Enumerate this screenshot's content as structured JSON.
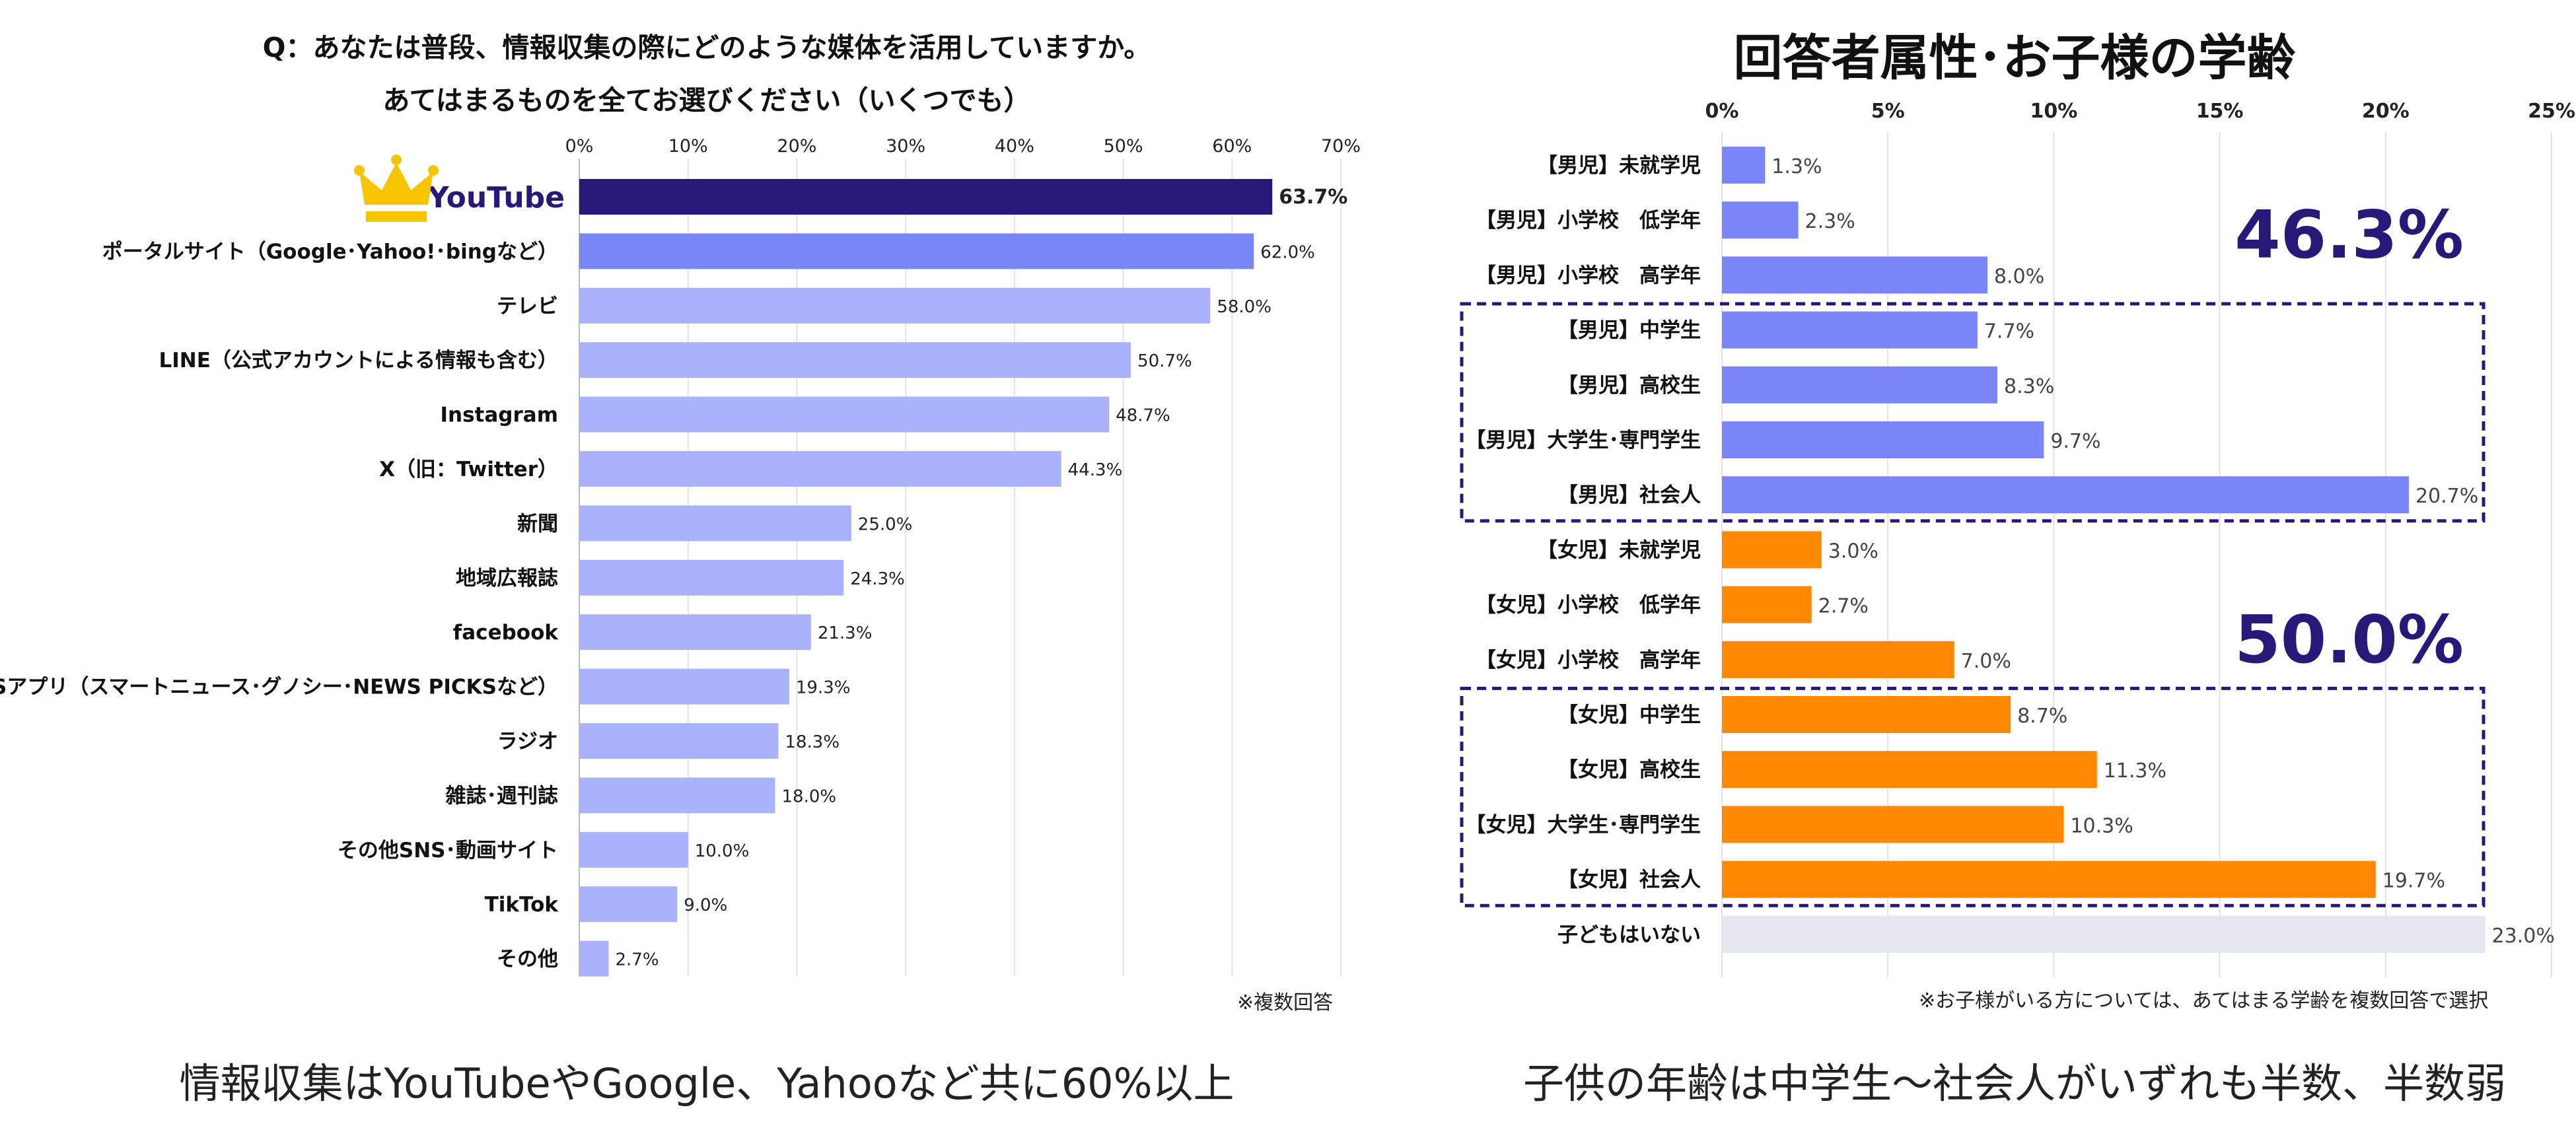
{
  "left": {
    "question_line1": "Q：あなたは普段、情報収集の際にどのような媒体を活用していますか。",
    "question_line2": "あてはまるものを全てお選びください（いくつでも）",
    "note": "※複数回答",
    "caption": "情報収集はYouTubeやGoogle、Yahooなど共に60%以上"
  },
  "right": {
    "title": "回答者属性･お子様の学齢",
    "note": "※お子様がいる方については、あてはまる学齢を複数回答で選択",
    "caption": "子供の年齢は中学生～社会人がいずれも半数、半数弱",
    "callout_boys": "46.3%",
    "callout_girls": "50.0%"
  },
  "colors": {
    "top_bar": "#27197a",
    "second_bar": "#7a86f7",
    "other_bars": "#aab2fb",
    "boys": "#7a86f7",
    "girls": "#fd8701",
    "none": "#e3e6ec",
    "callout": "#27197a",
    "crown": "#f6c400"
  },
  "icons": {
    "top_item_badge": "crown-icon"
  },
  "chart_data": [
    {
      "type": "bar",
      "orientation": "horizontal",
      "categories": [
        "YouTube",
        "ポータルサイト（Google･Yahoo!･bingなど）",
        "テレビ",
        "LINE（公式アカウントによる情報も含む）",
        "Instagram",
        "X（旧：Twitter）",
        "新聞",
        "地域広報誌",
        "facebook",
        "NEWSアプリ（スマートニュース･グノシー･NEWS PICKSなど）",
        "ラジオ",
        "雑誌･週刊誌",
        "その他SNS･動画サイト",
        "TikTok",
        "その他"
      ],
      "values": [
        63.7,
        62.0,
        58.0,
        50.7,
        48.7,
        44.3,
        25.0,
        24.3,
        21.3,
        19.3,
        18.3,
        18.0,
        10.0,
        9.0,
        2.7
      ],
      "value_labels": [
        "63.7%",
        "62.0%",
        "58.0%",
        "50.7%",
        "48.7%",
        "44.3%",
        "25.0%",
        "24.3%",
        "21.3%",
        "19.3%",
        "18.3%",
        "18.0%",
        "10.0%",
        "9.0%",
        "2.7%"
      ],
      "xlim": [
        0,
        70
      ],
      "ticks": [
        0,
        10,
        20,
        30,
        40,
        50,
        60,
        70
      ],
      "tick_labels": [
        "0%",
        "10%",
        "20%",
        "30%",
        "40%",
        "50%",
        "60%",
        "70%"
      ],
      "grid": true
    },
    {
      "type": "bar",
      "orientation": "horizontal",
      "categories": [
        "【男児】未就学児",
        "【男児】小学校　低学年",
        "【男児】小学校　高学年",
        "【男児】中学生",
        "【男児】高校生",
        "【男児】大学生･専門学生",
        "【男児】社会人",
        "【女児】未就学児",
        "【女児】小学校　低学年",
        "【女児】小学校　高学年",
        "【女児】中学生",
        "【女児】高校生",
        "【女児】大学生･専門学生",
        "【女児】社会人",
        "子どもはいない"
      ],
      "values": [
        1.3,
        2.3,
        8.0,
        7.7,
        8.3,
        9.7,
        20.7,
        3.0,
        2.7,
        7.0,
        8.7,
        11.3,
        10.3,
        19.7,
        23.0
      ],
      "value_labels": [
        "1.3%",
        "2.3%",
        "8.0%",
        "7.7%",
        "8.3%",
        "9.7%",
        "20.7%",
        "3.0%",
        "2.7%",
        "7.0%",
        "8.7%",
        "11.3%",
        "10.3%",
        "19.7%",
        "23.0%"
      ],
      "groups": [
        "boys",
        "boys",
        "boys",
        "boys",
        "boys",
        "boys",
        "boys",
        "girls",
        "girls",
        "girls",
        "girls",
        "girls",
        "girls",
        "girls",
        "none"
      ],
      "xlim": [
        0,
        25
      ],
      "ticks": [
        0,
        5,
        10,
        15,
        20,
        25
      ],
      "tick_labels": [
        "0%",
        "5%",
        "10%",
        "15%",
        "20%",
        "25%"
      ],
      "grid": true,
      "highlight_ranges": [
        [
          3,
          6
        ],
        [
          10,
          13
        ]
      ]
    }
  ]
}
